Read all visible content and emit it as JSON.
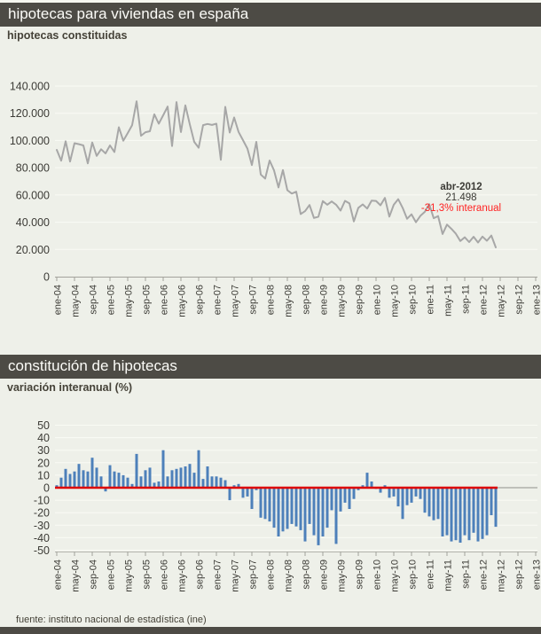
{
  "page": {
    "background": "#eef0e9",
    "title_bar_color": "#4d4b45"
  },
  "header1": {
    "title": "hipotecas para viviendas en españa",
    "subtitle": "hipotecas constituidas"
  },
  "header2": {
    "title": "constitución de hipotecas",
    "subtitle": "variación interanual (%)"
  },
  "footer": {
    "source": "fuente: instituto nacional de estadística (ine)"
  },
  "months": [
    "ene-04",
    "feb-04",
    "mar-04",
    "abr-04",
    "may-04",
    "jun-04",
    "jul-04",
    "ago-04",
    "sep-04",
    "oct-04",
    "nov-04",
    "dic-04",
    "ene-05",
    "feb-05",
    "mar-05",
    "abr-05",
    "may-05",
    "jun-05",
    "jul-05",
    "ago-05",
    "sep-05",
    "oct-05",
    "nov-05",
    "dic-05",
    "ene-06",
    "feb-06",
    "mar-06",
    "abr-06",
    "may-06",
    "jun-06",
    "jul-06",
    "ago-06",
    "sep-06",
    "oct-06",
    "nov-06",
    "dic-06",
    "ene-07",
    "feb-07",
    "mar-07",
    "abr-07",
    "may-07",
    "jun-07",
    "jul-07",
    "ago-07",
    "sep-07",
    "oct-07",
    "nov-07",
    "dic-07",
    "ene-08",
    "feb-08",
    "mar-08",
    "abr-08",
    "may-08",
    "jun-08",
    "jul-08",
    "ago-08",
    "sep-08",
    "oct-08",
    "nov-08",
    "dic-08",
    "ene-09",
    "feb-09",
    "mar-09",
    "abr-09",
    "may-09",
    "jun-09",
    "jul-09",
    "ago-09",
    "sep-09",
    "oct-09",
    "nov-09",
    "dic-09",
    "ene-10",
    "feb-10",
    "mar-10",
    "abr-10",
    "may-10",
    "jun-10",
    "jul-10",
    "ago-10",
    "sep-10",
    "oct-10",
    "nov-10",
    "dic-10",
    "ene-11",
    "feb-11",
    "mar-11",
    "abr-11",
    "may-11",
    "jun-11",
    "jul-11",
    "ago-11",
    "sep-11",
    "oct-11",
    "nov-11",
    "dic-11",
    "ene-12",
    "feb-12",
    "mar-12",
    "abr-12"
  ],
  "chart_data": [
    {
      "type": "line",
      "title": "hipotecas constituidas",
      "xlabel": "",
      "ylabel": "",
      "ylim": [
        0,
        140000
      ],
      "x_axis_end": "ene-13",
      "grid": true,
      "x_tick_labels": [
        "ene-04",
        "may-04",
        "sep-04",
        "ene-05",
        "may-05",
        "sep-05",
        "ene-06",
        "may-06",
        "sep-06",
        "ene-07",
        "may-07",
        "sep-07",
        "ene-08",
        "may-08",
        "sep-08",
        "ene-09",
        "may-09",
        "sep-09",
        "ene-10",
        "may-10",
        "sep-10",
        "ene-11",
        "may-11",
        "sep-11",
        "ene-12",
        "may-12",
        "sep-12",
        "ene-13"
      ],
      "ytick_values": [
        0,
        20000,
        40000,
        60000,
        80000,
        100000,
        120000,
        140000
      ],
      "ytick_labels": [
        "0",
        "20.000",
        "40.000",
        "60.000",
        "80.000",
        "100.000",
        "120.000",
        "140.000"
      ],
      "values": [
        93100,
        85200,
        99400,
        84500,
        98000,
        97300,
        96400,
        83200,
        98500,
        88700,
        93600,
        90500,
        96400,
        91500,
        109700,
        99800,
        105400,
        111300,
        128800,
        103500,
        106100,
        106800,
        119200,
        112300,
        118500,
        124900,
        95900,
        128200,
        106200,
        125800,
        111900,
        99000,
        94700,
        111300,
        112100,
        111400,
        112300,
        85800,
        124700,
        105800,
        116900,
        106300,
        100200,
        94000,
        82000,
        99000,
        75000,
        72000,
        85300,
        78000,
        65500,
        78300,
        63500,
        61000,
        62400,
        46000,
        48100,
        52600,
        43100,
        44000,
        55500,
        52800,
        55200,
        52800,
        48500,
        55700,
        53800,
        40600,
        50500,
        53100,
        50000,
        55800,
        55600,
        52400,
        57800,
        44100,
        52800,
        56900,
        50500,
        42500,
        45800,
        40000,
        44700,
        47600,
        53200,
        42900,
        44500,
        31300,
        38200,
        35100,
        31500,
        26200,
        28900,
        25400,
        29300,
        25100,
        29400,
        26400,
        30200,
        21498
      ],
      "line_color": "#a7a7a7",
      "annotation": {
        "lines": [
          {
            "text": "abr-2012",
            "color": "#3c3b36",
            "bold": true
          },
          {
            "text": "21.498",
            "color": "#3c3b36",
            "bold": false
          },
          {
            "text": "-31,3% interanual",
            "color": "#ff2222",
            "bold": false
          }
        ]
      }
    },
    {
      "type": "bar",
      "title": "variación interanual (%)",
      "xlabel": "",
      "ylabel": "",
      "ylim": [
        -50,
        50
      ],
      "x_axis_end": "ene-13",
      "grid": true,
      "x_tick_labels": [
        "ene-04",
        "may-04",
        "sep-04",
        "ene-05",
        "may-05",
        "sep-05",
        "ene-06",
        "may-06",
        "sep-06",
        "ene-07",
        "may-07",
        "sep-07",
        "ene-08",
        "may-08",
        "sep-08",
        "ene-09",
        "may-09",
        "sep-09",
        "ene-10",
        "may-10",
        "sep-10",
        "ene-11",
        "may-11",
        "sep-11",
        "ene-12",
        "may-12",
        "sep-12",
        "ene-13"
      ],
      "ytick_values": [
        50,
        40,
        30,
        20,
        10,
        0,
        -10,
        -20,
        -30,
        -40,
        -50
      ],
      "ytick_labels": [
        "50",
        "40",
        "30",
        "20",
        "10",
        "0",
        "-10",
        "-20",
        "-30",
        "-40",
        "-50"
      ],
      "values": [
        2,
        8,
        15,
        11,
        13,
        19,
        14,
        13,
        24,
        16,
        9,
        -3,
        18,
        13,
        12,
        10,
        8,
        3,
        27,
        9,
        14,
        16,
        4,
        5,
        30,
        9,
        14,
        15,
        16,
        17,
        19,
        12,
        30,
        7,
        17,
        9,
        9,
        8,
        6,
        -10,
        2,
        3,
        -8,
        -7,
        -17,
        -2,
        -24,
        -25,
        -27,
        -32,
        -39,
        -35,
        -33,
        -29,
        -31,
        -34,
        -43,
        -29,
        -38,
        -46,
        -39,
        -32,
        -18,
        -45,
        -19,
        -12,
        -17,
        -9,
        -2,
        2,
        12,
        5,
        -1,
        -4,
        2,
        -8,
        -7,
        -15,
        -25,
        -14,
        -12,
        -7,
        -9,
        -20,
        -23,
        -26,
        -25,
        -39,
        -38,
        -43,
        -42,
        -44,
        -38,
        -42,
        -36,
        -43,
        -41,
        -38,
        -22,
        -31.3
      ],
      "bar_color": "#4d80ba",
      "zero_line_color": "#dd0000",
      "axis_extension_color": "#90908a"
    }
  ]
}
